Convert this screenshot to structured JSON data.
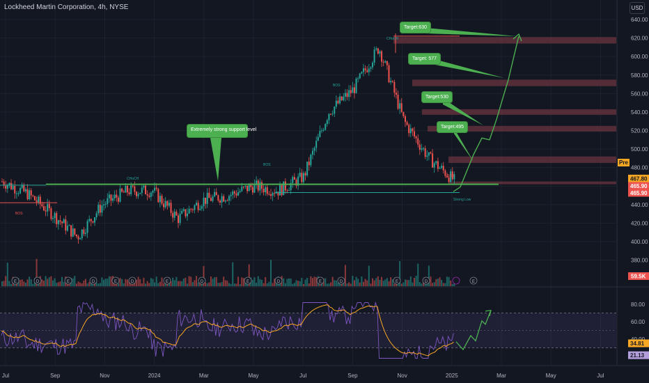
{
  "header": {
    "title": "Lockheed Martin Corporation, 4h, NYSE",
    "currency": "USD"
  },
  "colors": {
    "background": "#131722",
    "up_candle": "#26a69a",
    "down_candle": "#ef5350",
    "callout": "#4caf50",
    "rsi_line": "#7e57c2",
    "rsi_ma": "#f9a825",
    "resistance_zone": "#6b3440"
  },
  "price_axis": {
    "ticks": [
      "640.00",
      "620.00",
      "600.00",
      "580.00",
      "560.00",
      "540.00",
      "520.00",
      "500.00",
      "480.00",
      "460.00",
      "440.00",
      "420.00",
      "400.00",
      "380.00"
    ],
    "labels": [
      {
        "text": "467.80",
        "bg": "#f5a623",
        "fg": "#131722"
      },
      {
        "text": "465.90",
        "bg": "#ef5350",
        "fg": "#ffffff"
      },
      {
        "text": "465.90",
        "bg": "#ef5350",
        "fg": "#ffffff"
      }
    ],
    "pre_badge": "Pre",
    "volume_label": "59.5K"
  },
  "rsi_axis": {
    "ticks": [
      "80.00",
      "60.00",
      "40.00",
      "20.00"
    ],
    "labels": [
      {
        "text": "34.81",
        "bg": "#f9a825",
        "fg": "#131722"
      },
      {
        "text": "21.13",
        "bg": "#b39ddb",
        "fg": "#131722"
      }
    ]
  },
  "time_axis": [
    "Jul",
    "Sep",
    "Nov",
    "2024",
    "Mar",
    "May",
    "Jul",
    "Sep",
    "Nov",
    "2025",
    "Mar",
    "May",
    "Jul"
  ],
  "callouts": [
    {
      "text": "Extremely strong support level"
    },
    {
      "text": "Target:630"
    },
    {
      "text": "Target: 577"
    },
    {
      "text": "Target:530"
    },
    {
      "text": "Target:495"
    }
  ],
  "annotations": {
    "strong_low": "Strong Low",
    "choch": "CHoCH",
    "bos": "BOS",
    "event_e": "E",
    "event_d": "D"
  },
  "chart_data": {
    "type": "line",
    "title": "Lockheed Martin Corporation, 4h, NYSE",
    "x": [
      "2023-07",
      "2023-08",
      "2023-09",
      "2023-10",
      "2023-11",
      "2023-12",
      "2024-01",
      "2024-02",
      "2024-03",
      "2024-04",
      "2024-05",
      "2024-06",
      "2024-07",
      "2024-08",
      "2024-09",
      "2024-10",
      "2024-11",
      "2024-12",
      "2025-01"
    ],
    "series": [
      {
        "name": "",
        "values": [
          465,
          452,
          430,
          405,
          440,
          455,
          455,
          425,
          445,
          450,
          460,
          455,
          470,
          540,
          565,
          610,
          530,
          490,
          466
        ]
      }
    ],
    "projection": {
      "x": [
        "2025-01",
        "2025-01",
        "2025-02",
        "2025-02",
        "2025-03",
        "2025-03"
      ],
      "values": [
        453,
        495,
        512,
        530,
        577,
        630
      ]
    },
    "support_level": 462,
    "targets": [
      630,
      577,
      530,
      495
    ],
    "ylim": [
      370,
      645
    ],
    "rsi": {
      "ylim": [
        10,
        90
      ],
      "last": 34.81,
      "ma_last": 21.13,
      "levels": [
        70,
        30
      ]
    }
  }
}
